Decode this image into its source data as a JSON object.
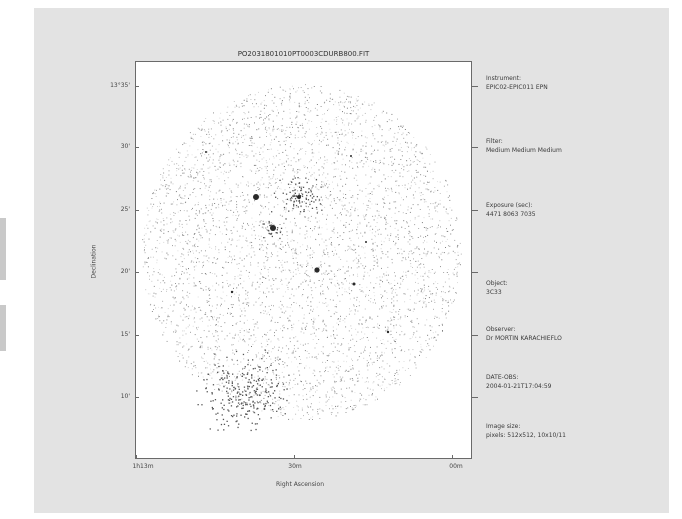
{
  "image": {
    "title": "PO2031801010PT0003CDURB800.FIT",
    "ylabel": "Declination",
    "xlabel": "Right Ascension",
    "yticks": [
      "13°35'",
      "30'",
      "25'",
      "20'",
      "15'",
      "10'"
    ],
    "xticks": [
      "1h13m",
      "30m",
      "00m"
    ]
  },
  "info_panel": [
    {
      "label": "Instrument:",
      "value": "EPIC02-EPIC011 EPN"
    },
    {
      "label": "Filter:",
      "value": "Medium Medium Medium"
    },
    {
      "label": "Exposure (sec):",
      "value": "4471 8063 7035"
    },
    {
      "label": "Object:",
      "value": "3C33"
    },
    {
      "label": "Observer:",
      "value": "Dr MORTIN KARACHIEFLO"
    },
    {
      "label": "DATE-OBS:",
      "value": "2004-01-21T17:04:59"
    },
    {
      "label": "Image size:",
      "value": "pixels: 512x512, 10x10/11"
    }
  ],
  "colors": {
    "frame_bg": "#e3e3e3",
    "plot_bg": "#ffffff",
    "source": "#2a2a2a"
  }
}
